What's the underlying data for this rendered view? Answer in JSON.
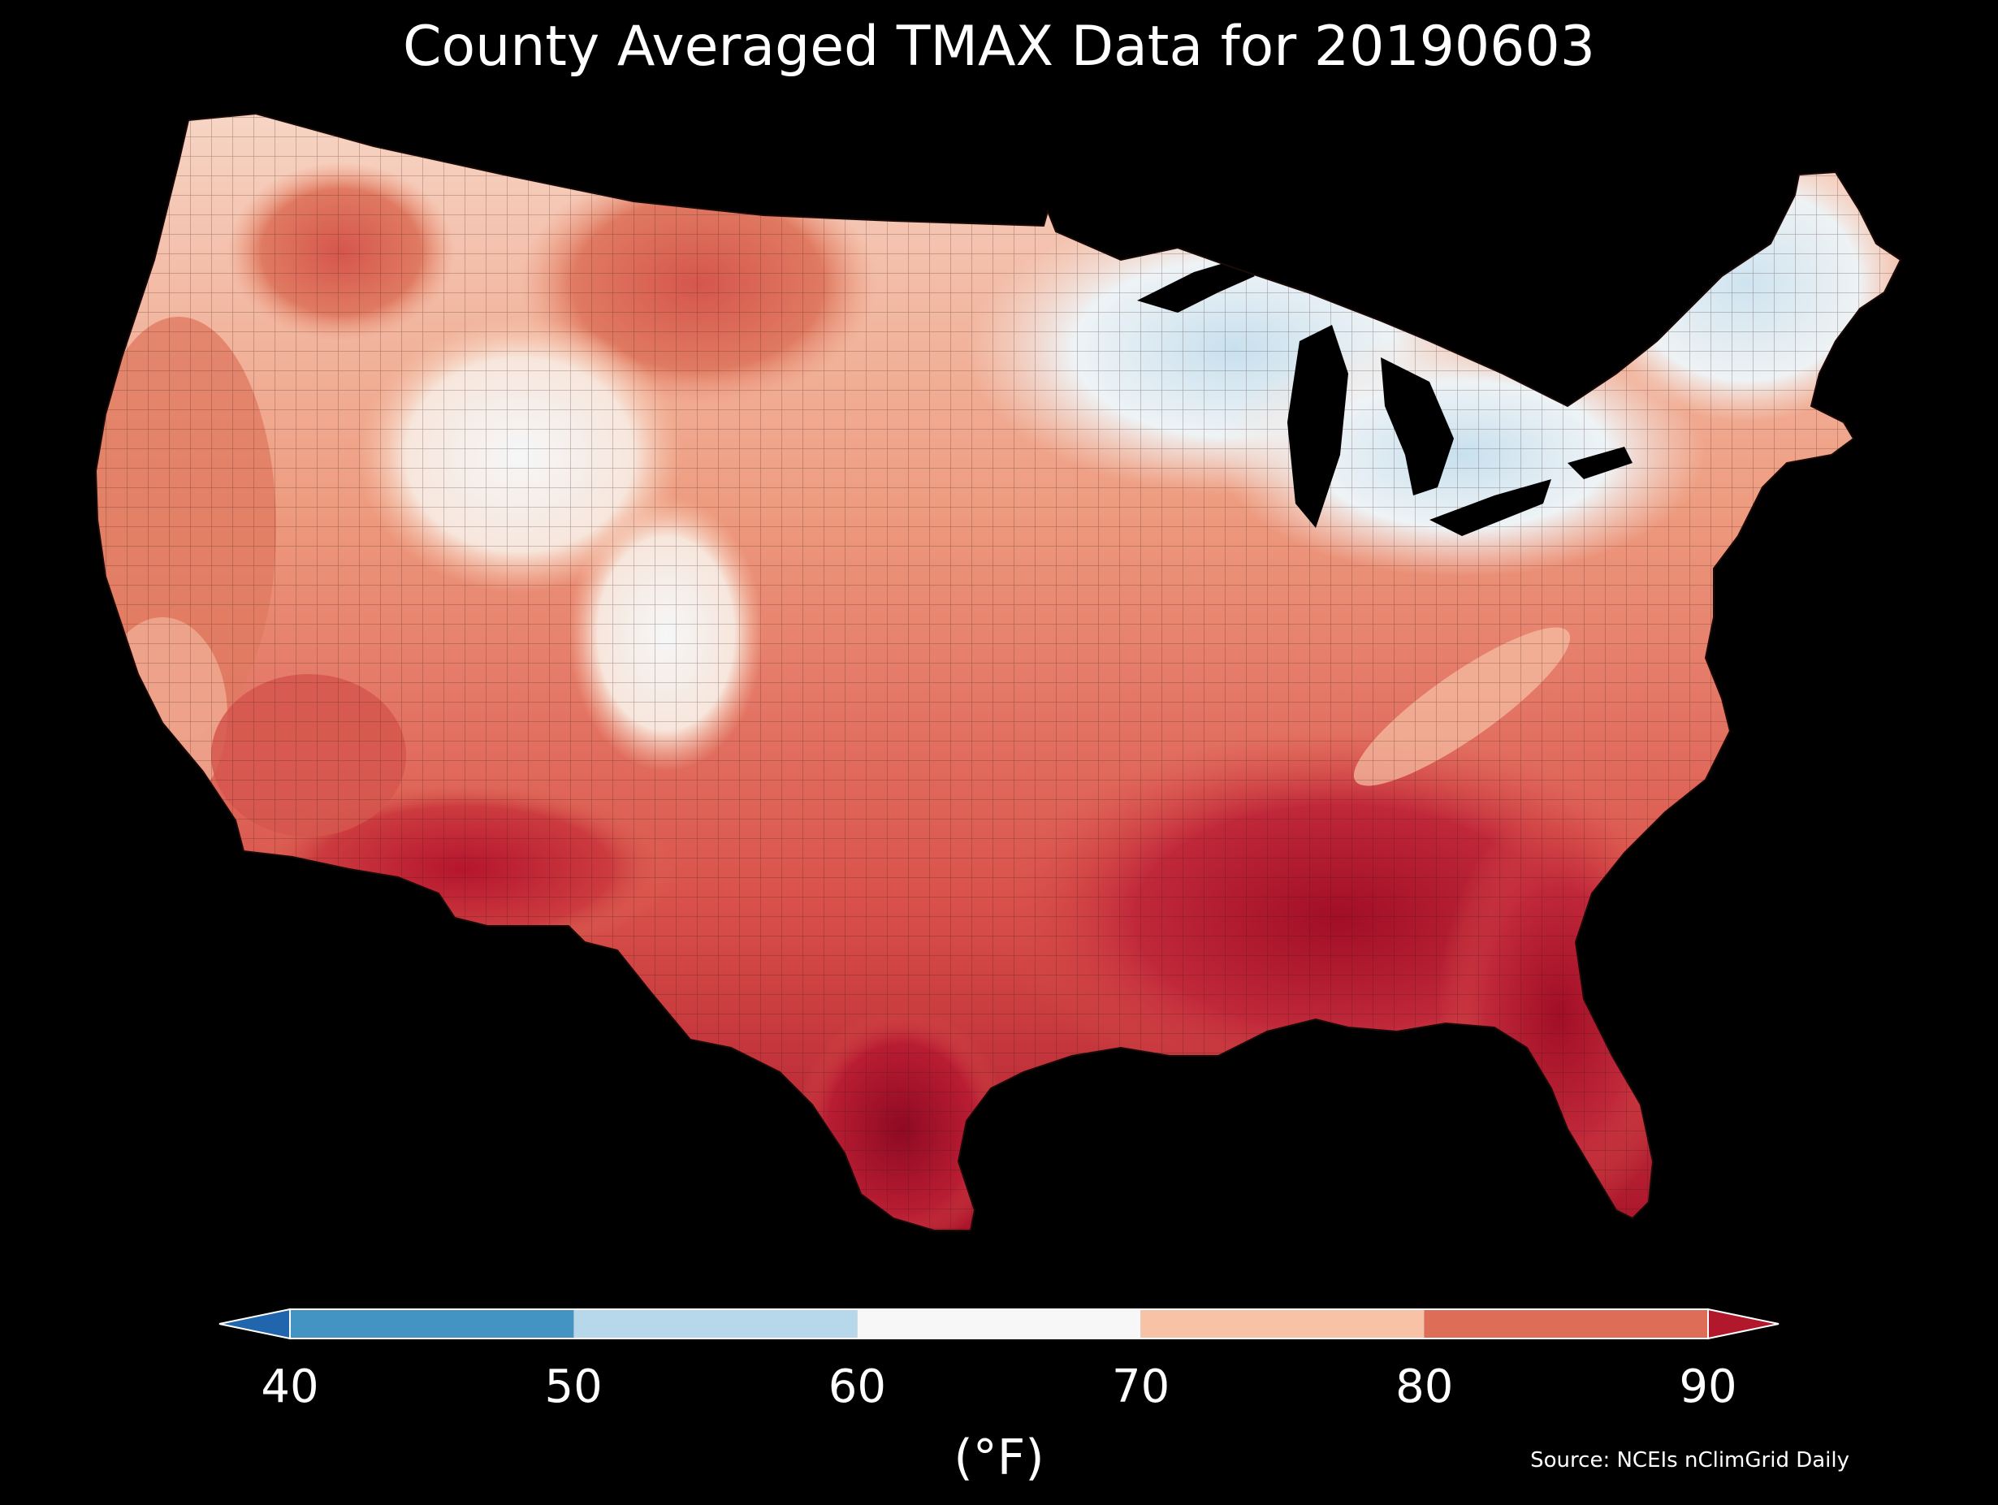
{
  "title": "County Averaged TMAX Data for 20190603",
  "colorbar": {
    "ticks": [
      "40",
      "50",
      "60",
      "70",
      "80",
      "90"
    ],
    "unit": "(°F)",
    "extend": "both",
    "bins": [
      {
        "from": 40,
        "to": 50,
        "color": "#4393c3"
      },
      {
        "from": 50,
        "to": 60,
        "color": "#b7d7ea"
      },
      {
        "from": 60,
        "to": 70,
        "color": "#f7f7f7"
      },
      {
        "from": 70,
        "to": 80,
        "color": "#f7c2a6"
      },
      {
        "from": 80,
        "to": 90,
        "color": "#de6d58"
      }
    ],
    "under_color": "#2166ac",
    "over_color": "#b2182b"
  },
  "source": "Source: NCEIs nClimGrid Daily",
  "map": {
    "region": "contiguous United States, counties",
    "variable": "TMAX",
    "units": "°F",
    "background": "#000000"
  }
}
